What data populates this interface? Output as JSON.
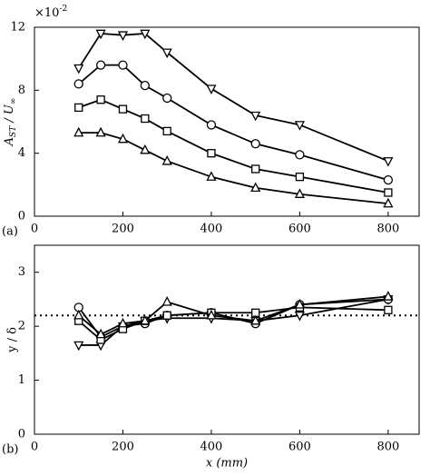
{
  "chart_data": [
    {
      "type": "line",
      "panel_label": "(a)",
      "ylabel": [
        "A",
        "ST",
        " / U",
        "∞"
      ],
      "y_multiplier": [
        "×10",
        "-2"
      ],
      "x": [
        100,
        150,
        200,
        250,
        300,
        400,
        500,
        600,
        800
      ],
      "xlim": [
        0,
        870
      ],
      "xticks": [
        0,
        200,
        400,
        600,
        800
      ],
      "ylim": [
        0,
        12
      ],
      "yticks": [
        0,
        4,
        8,
        12
      ],
      "series": [
        {
          "marker": "down-triangle",
          "color": "#000000",
          "values": [
            9.4,
            11.6,
            11.5,
            11.6,
            10.4,
            8.1,
            6.4,
            5.8,
            3.5
          ]
        },
        {
          "marker": "circle",
          "color": "#000000",
          "values": [
            8.4,
            9.6,
            9.6,
            8.3,
            7.5,
            5.8,
            4.6,
            3.9,
            2.3
          ]
        },
        {
          "marker": "square",
          "color": "#000000",
          "values": [
            6.9,
            7.4,
            6.8,
            6.2,
            5.4,
            4.0,
            3.0,
            2.5,
            1.5
          ]
        },
        {
          "marker": "triangle",
          "color": "#000000",
          "values": [
            5.3,
            5.3,
            4.9,
            4.2,
            3.5,
            2.5,
            1.8,
            1.4,
            0.8
          ]
        }
      ]
    },
    {
      "type": "line",
      "panel_label": "(b)",
      "xlabel": "x (mm)",
      "ylabel": "y / δ",
      "x": [
        100,
        150,
        200,
        250,
        300,
        400,
        500,
        600,
        800
      ],
      "xlim": [
        0,
        870
      ],
      "xticks": [
        0,
        200,
        400,
        600,
        800
      ],
      "ylim": [
        0,
        3.5
      ],
      "yticks": [
        0,
        1,
        2,
        3
      ],
      "reference_line": 2.2,
      "series": [
        {
          "marker": "down-triangle",
          "color": "#000000",
          "values": [
            1.65,
            1.65,
            2.0,
            2.1,
            2.15,
            2.15,
            2.1,
            2.2,
            2.5
          ]
        },
        {
          "marker": "circle",
          "color": "#000000",
          "values": [
            2.35,
            1.8,
            2.0,
            2.05,
            2.2,
            2.25,
            2.05,
            2.4,
            2.5
          ]
        },
        {
          "marker": "square",
          "color": "#000000",
          "values": [
            2.1,
            1.75,
            1.95,
            2.1,
            2.2,
            2.25,
            2.25,
            2.35,
            2.3
          ]
        },
        {
          "marker": "triangle",
          "color": "#000000",
          "values": [
            2.2,
            1.85,
            2.05,
            2.1,
            2.45,
            2.2,
            2.1,
            2.4,
            2.55
          ]
        }
      ]
    }
  ]
}
